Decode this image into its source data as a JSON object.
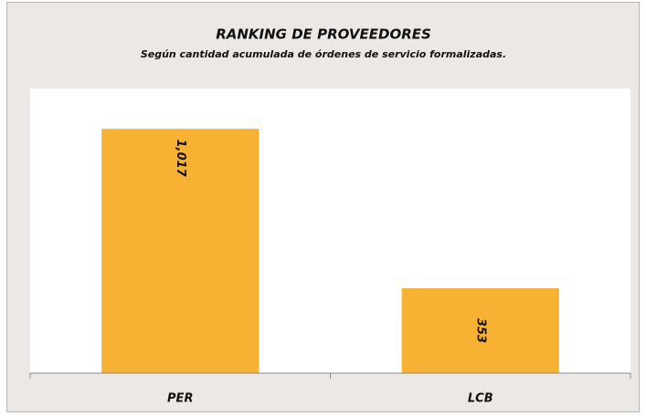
{
  "chart_data": {
    "type": "bar",
    "title": "RANKING DE PROVEEDORES",
    "subtitle": "Según cantidad acumulada de órdenes de servicio formalizadas.",
    "categories": [
      "PER",
      "LCB"
    ],
    "values": [
      1017,
      353
    ],
    "value_labels": [
      "1,017",
      "353"
    ],
    "color": "#f7b133",
    "ylim": [
      0,
      1200
    ]
  }
}
